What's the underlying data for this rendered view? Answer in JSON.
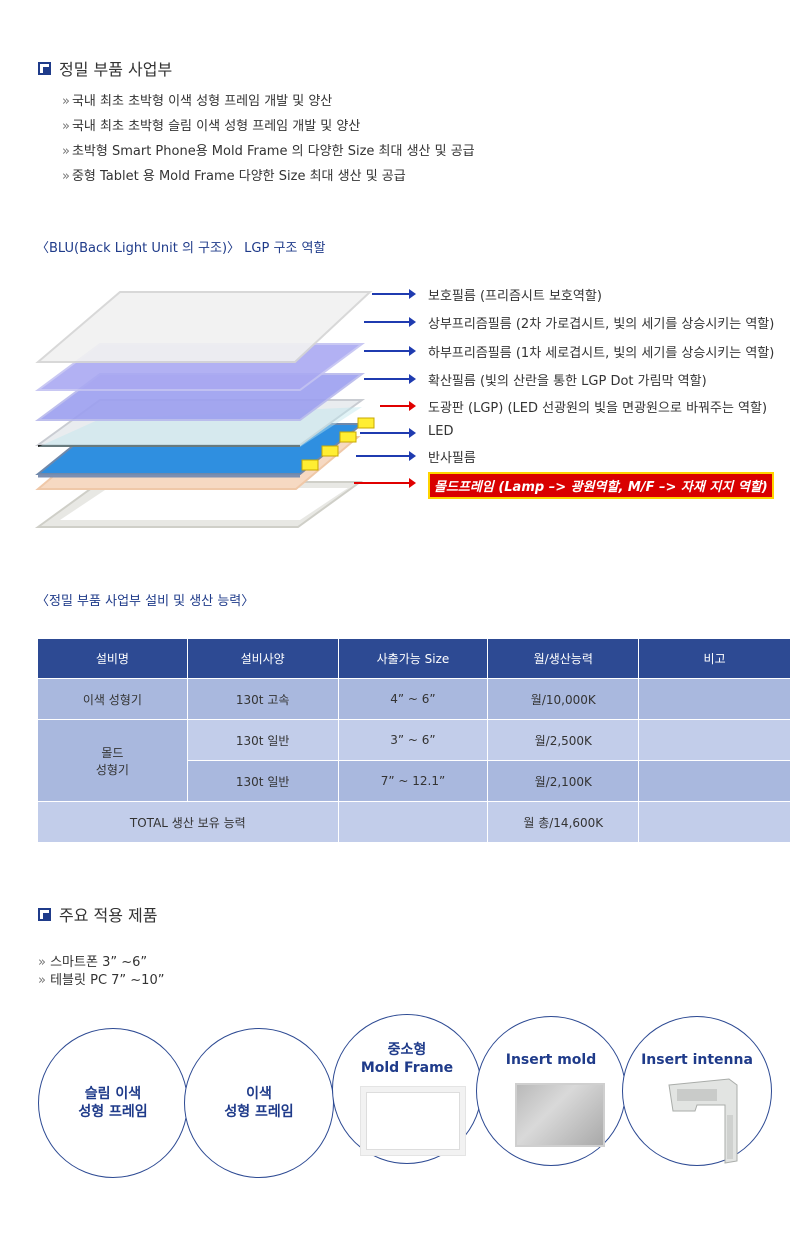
{
  "business": {
    "heading": "정밀 부품 사업부",
    "bullets": [
      "국내 최초 초박형 이색 성형 프레임 개발 및 양산",
      "국내 최초 초박형 슬림 이색 성형 프레임 개발 및 양산",
      "초박형 Smart Phone용  Mold Frame 의 다양한  Size 최대 생산 및 공급",
      "중형 Tablet 용 Mold Frame 다양한 Size 최대 생산 및 공급"
    ]
  },
  "blu": {
    "title": "〈BLU(Back Light Unit 의 구조)〉 LGP 구조 역할",
    "layers": [
      "보호필름 (프리즘시트 보호역할)",
      "상부프리즘필름 (2차 가로겹시트, 빛의 세기를 상승시키는 역할)",
      "하부프리즘필름 (1차 세로겹시트, 빛의 세기를 상승시키는 역할)",
      "확산필름 (빛의 산란을 통한 LGP Dot 가림막 역할)",
      "도광판 (LGP) (LED 선광원의 빛을 면광원으로 바꿔주는 역할)",
      "LED",
      "반사필름"
    ],
    "highlight": "몰드프레임 (Lamp –> 광원역할, M/F –> 자재 지지 역할)",
    "colors": {
      "arrow_blue": "#1f3bb0",
      "arrow_red": "#e00000",
      "highlight_bg": "#d90000"
    }
  },
  "capacity": {
    "title": "〈정밀 부품 사업부 설비 및 생산 능력〉",
    "headers": [
      "설비명",
      "설비사양",
      "사출가능 Size",
      "월/생산능력",
      "비고"
    ],
    "row1": {
      "name": "이색 성형기",
      "spec": "130t 고속",
      "size": "4” ~ 6”",
      "cap": "월/10,000K",
      "note": ""
    },
    "mold_name_1": "몰드",
    "mold_name_2": "성형기",
    "row2": {
      "spec": "130t 일반",
      "size": "3” ~ 6”",
      "cap": "월/2,500K",
      "note": ""
    },
    "row3": {
      "spec": "130t 일반",
      "size": "7” ~ 12.1”",
      "cap": "월/2,100K",
      "note": ""
    },
    "total": {
      "label": "TOTAL 생산 보유 능력",
      "size": "",
      "cap": "월 총/14,600K",
      "note": ""
    }
  },
  "products": {
    "heading": "주요 적용 제품",
    "items": [
      "스마트폰 3” ~6”",
      "테블릿 PC 7” ~10”"
    ],
    "circles": [
      {
        "line1": "슬림 이색",
        "line2": "성형 프레임"
      },
      {
        "line1": "이색",
        "line2": "성형 프레임"
      },
      {
        "line1": "중소형",
        "line2": "Mold Frame"
      },
      {
        "line1": "Insert mold",
        "line2": ""
      },
      {
        "line1": "Insert intenna",
        "line2": ""
      }
    ]
  }
}
